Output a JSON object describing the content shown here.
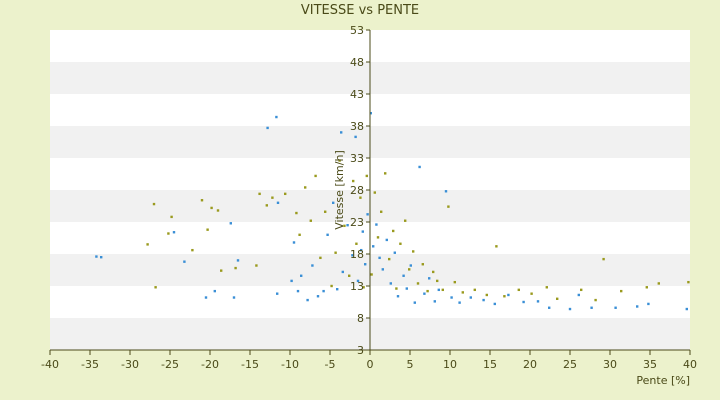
{
  "chart_data": {
    "type": "scatter",
    "title": "VITESSE vs PENTE",
    "xlabel": "Pente [%]",
    "ylabel": "Vitesse [km/h]",
    "xlim": [
      -40,
      40
    ],
    "ylim": [
      3,
      53
    ],
    "xticks": [
      "-40",
      "-35",
      "-30",
      "-25",
      "-20",
      "-15",
      "-10",
      "-5",
      "0",
      "5",
      "10",
      "15",
      "20",
      "25",
      "30",
      "35",
      "40"
    ],
    "yticks": [
      "3",
      "8",
      "13",
      "18",
      "23",
      "28",
      "33",
      "38",
      "43",
      "48",
      "53"
    ],
    "grid": "horizontal bands",
    "legend": "none",
    "colors": {
      "series_a": "#3a8fd6",
      "series_b": "#9a9a1e",
      "band_alt": "#f1f1f1",
      "plot_bg": "#ffffff",
      "page_bg": "#ecf2cc"
    },
    "series": [
      {
        "values": [
          [
            -34.2,
            17.6
          ],
          [
            -33.6,
            17.5
          ],
          [
            -24.5,
            21.4
          ],
          [
            -23.2,
            16.8
          ],
          [
            -20.5,
            11.2
          ],
          [
            -19.4,
            12.2
          ],
          [
            -17,
            11.2
          ],
          [
            -17.4,
            22.8
          ],
          [
            -16.5,
            17
          ],
          [
            -12.8,
            37.7
          ],
          [
            -11.7,
            39.4
          ],
          [
            -11.5,
            26
          ],
          [
            -11.6,
            11.8
          ],
          [
            -9.8,
            13.8
          ],
          [
            -9.5,
            19.8
          ],
          [
            -9,
            12.2
          ],
          [
            -8.6,
            14.6
          ],
          [
            -7.8,
            10.8
          ],
          [
            -7.2,
            16.2
          ],
          [
            -6.5,
            11.4
          ],
          [
            -5.8,
            12.2
          ],
          [
            -5.3,
            21
          ],
          [
            -4.6,
            26
          ],
          [
            -4.1,
            12.5
          ],
          [
            -3.6,
            37
          ],
          [
            -3.4,
            15.2
          ],
          [
            -2.8,
            22.5
          ],
          [
            -2.2,
            17.8
          ],
          [
            -1.8,
            36.3
          ],
          [
            -1.5,
            13.8
          ],
          [
            -1.1,
            18.6
          ],
          [
            -0.9,
            21.5
          ],
          [
            -0.6,
            16.4
          ],
          [
            -0.3,
            24.2
          ],
          [
            0.1,
            40
          ],
          [
            0.4,
            19.2
          ],
          [
            0.8,
            22.6
          ],
          [
            1.2,
            17.4
          ],
          [
            1.6,
            15.6
          ],
          [
            2.1,
            20.2
          ],
          [
            2.6,
            13.4
          ],
          [
            3.1,
            18.2
          ],
          [
            3.5,
            11.4
          ],
          [
            4.2,
            14.6
          ],
          [
            4.6,
            12.6
          ],
          [
            5.1,
            16.2
          ],
          [
            5.6,
            10.4
          ],
          [
            6.2,
            31.6
          ],
          [
            6.8,
            11.8
          ],
          [
            7.4,
            14.2
          ],
          [
            8.1,
            10.6
          ],
          [
            8.6,
            12.4
          ],
          [
            9.5,
            27.8
          ],
          [
            10.2,
            11.2
          ],
          [
            11.2,
            10.4
          ],
          [
            12.6,
            11.2
          ],
          [
            14.2,
            10.8
          ],
          [
            15.6,
            10.2
          ],
          [
            17.3,
            11.6
          ],
          [
            19.2,
            10.5
          ],
          [
            21,
            10.6
          ],
          [
            22.4,
            9.6
          ],
          [
            25,
            9.4
          ],
          [
            26.1,
            11.6
          ],
          [
            27.7,
            9.6
          ],
          [
            30.7,
            9.6
          ],
          [
            33.4,
            9.8
          ],
          [
            34.8,
            10.2
          ],
          [
            39.6,
            9.4
          ],
          [
            40.7,
            9
          ]
        ]
      },
      {
        "values": [
          [
            -27.8,
            19.5
          ],
          [
            -27,
            25.8
          ],
          [
            -26.8,
            12.8
          ],
          [
            -25.2,
            21.2
          ],
          [
            -24.8,
            23.8
          ],
          [
            -22.2,
            18.6
          ],
          [
            -21,
            26.4
          ],
          [
            -20.3,
            21.8
          ],
          [
            -19.8,
            25.2
          ],
          [
            -19,
            24.8
          ],
          [
            -18.6,
            15.4
          ],
          [
            -16.8,
            15.8
          ],
          [
            -14.2,
            16.2
          ],
          [
            -13.8,
            27.4
          ],
          [
            -12.9,
            25.6
          ],
          [
            -12.2,
            26.8
          ],
          [
            -10.6,
            27.4
          ],
          [
            -9.2,
            24.4
          ],
          [
            -8.8,
            21
          ],
          [
            -8.1,
            28.4
          ],
          [
            -7.4,
            23.2
          ],
          [
            -6.8,
            30.2
          ],
          [
            -6.2,
            17.4
          ],
          [
            -5.6,
            24.6
          ],
          [
            -4.8,
            13
          ],
          [
            -4.3,
            18.2
          ],
          [
            -3.8,
            32.6
          ],
          [
            -3.2,
            22.4
          ],
          [
            -2.6,
            14.6
          ],
          [
            -2.1,
            29.4
          ],
          [
            -1.7,
            19.6
          ],
          [
            -1.2,
            26.8
          ],
          [
            -0.8,
            12.8
          ],
          [
            -0.4,
            30.2
          ],
          [
            0.2,
            14.8
          ],
          [
            0.6,
            27.6
          ],
          [
            1.0,
            20.6
          ],
          [
            1.4,
            24.6
          ],
          [
            1.9,
            30.6
          ],
          [
            2.4,
            17.2
          ],
          [
            2.9,
            21.6
          ],
          [
            3.3,
            12.6
          ],
          [
            3.8,
            19.6
          ],
          [
            4.4,
            23.2
          ],
          [
            4.9,
            15.6
          ],
          [
            5.4,
            18.4
          ],
          [
            6,
            13.4
          ],
          [
            6.6,
            16.4
          ],
          [
            7.2,
            12.2
          ],
          [
            7.9,
            15.2
          ],
          [
            8.4,
            13.8
          ],
          [
            9.1,
            12.4
          ],
          [
            9.8,
            25.4
          ],
          [
            10.6,
            13.6
          ],
          [
            11.6,
            12
          ],
          [
            13.1,
            12.4
          ],
          [
            14.6,
            11.6
          ],
          [
            15.8,
            19.2
          ],
          [
            16.8,
            11.4
          ],
          [
            18.6,
            12.4
          ],
          [
            20.2,
            11.8
          ],
          [
            22.1,
            12.8
          ],
          [
            23.4,
            11
          ],
          [
            26.4,
            12.4
          ],
          [
            28.2,
            10.8
          ],
          [
            29.2,
            17.2
          ],
          [
            31.4,
            12.2
          ],
          [
            34.6,
            12.8
          ],
          [
            36.1,
            13.4
          ],
          [
            39.8,
            13.6
          ]
        ]
      }
    ]
  }
}
